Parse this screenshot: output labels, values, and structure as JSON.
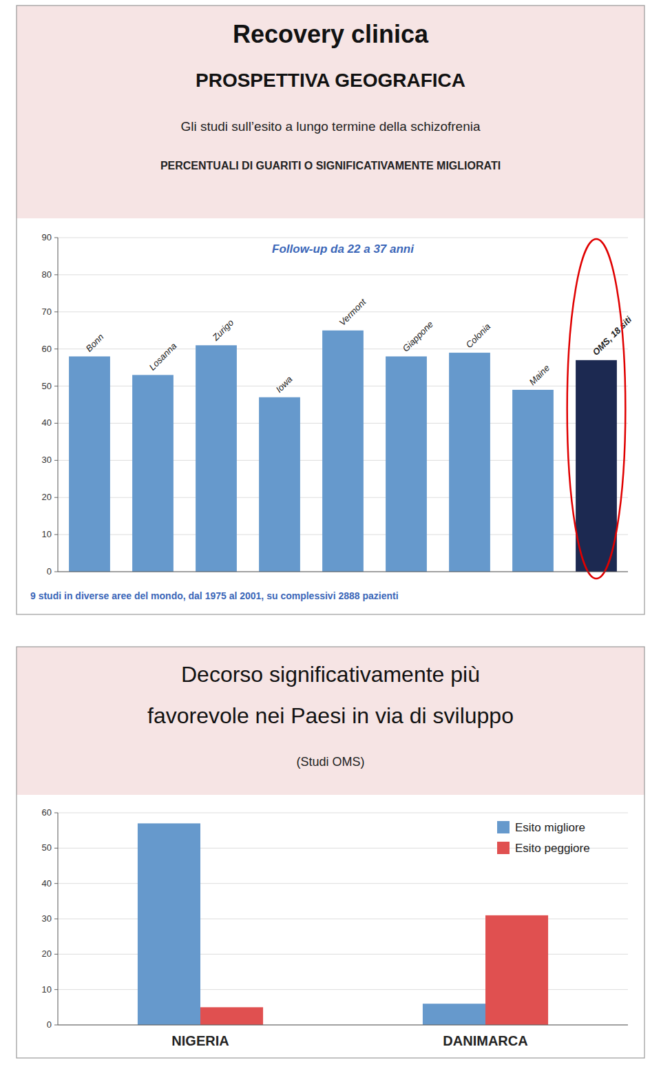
{
  "chart_data": [
    {
      "type": "bar",
      "title": [
        "Recovery clinica",
        "PROSPETTIVA GEOGRAFICA"
      ],
      "subtitle": [
        "Gli studi sull’esito a lungo termine della schizofrenia",
        "PERCENTUALI DI GUARITI O SIGNIFICATIVAMENTE MIGLIORATI"
      ],
      "annotations": [
        "Follow-up da 22 a 37 anni",
        "9 studi in diverse aree del mondo, dal 1975 al 2001, su complessivi 2888 pazienti"
      ],
      "categories": [
        "Bonn",
        "Losanna",
        "Zurigo",
        "Iowa",
        "Vermont",
        "Giappone",
        "Colonia",
        "Maine",
        "OMS, 18 siti"
      ],
      "values": [
        58,
        53,
        61,
        47,
        65,
        58,
        59,
        49,
        57
      ],
      "colors": [
        "#6699CC",
        "#6699CC",
        "#6699CC",
        "#6699CC",
        "#6699CC",
        "#6699CC",
        "#6699CC",
        "#6699CC",
        "#1C2951"
      ],
      "ylim": [
        0,
        90
      ],
      "yticks": [
        0,
        10,
        20,
        30,
        40,
        50,
        60,
        70,
        80,
        90
      ],
      "grid": true
    },
    {
      "type": "bar",
      "title": [
        "Decorso significativamente più",
        "favorevole nei Paesi in via di sviluppo"
      ],
      "subtitle": "(Studi OMS)",
      "categories": [
        "NIGERIA",
        "DANIMARCA"
      ],
      "series": [
        {
          "name": "Esito migliore",
          "color": "#6699CC",
          "values": [
            57,
            6
          ]
        },
        {
          "name": "Esito peggiore",
          "color": "#E05050",
          "values": [
            5,
            31
          ]
        }
      ],
      "ylim": [
        0,
        60
      ],
      "yticks": [
        0,
        10,
        20,
        30,
        40,
        50,
        60
      ],
      "grid": true,
      "legend": "upper right"
    }
  ]
}
